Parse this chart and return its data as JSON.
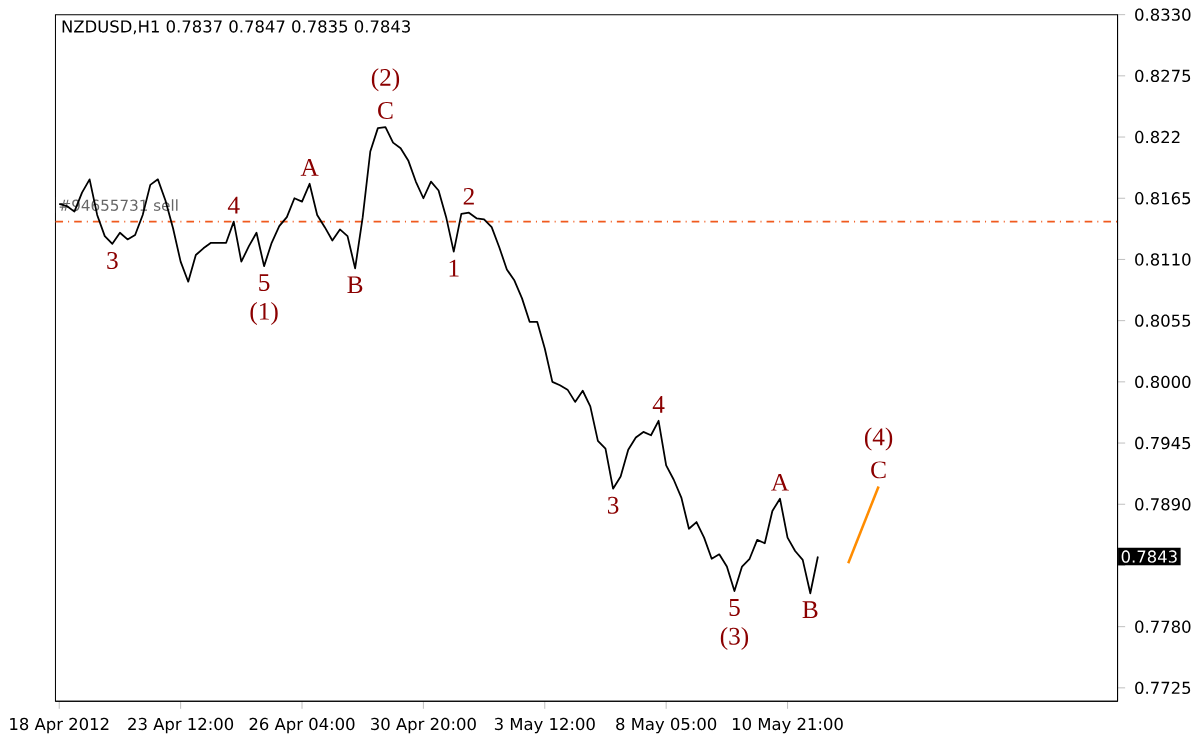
{
  "chart_data": {
    "type": "line",
    "title": "NZDUSD,H1  0.7837 0.7847 0.7835 0.7843",
    "categories": [
      "18 Apr 2012",
      null,
      null,
      null,
      null,
      null,
      null,
      null,
      null,
      null,
      null,
      null,
      null,
      null,
      null,
      null,
      "23 Apr 12:00",
      null,
      null,
      null,
      null,
      null,
      null,
      null,
      null,
      null,
      null,
      null,
      null,
      null,
      null,
      null,
      "26 Apr 04:00",
      null,
      null,
      null,
      null,
      null,
      null,
      null,
      null,
      null,
      null,
      null,
      null,
      null,
      null,
      null,
      "30 Apr 20:00",
      null,
      null,
      null,
      null,
      null,
      null,
      null,
      null,
      null,
      null,
      null,
      null,
      null,
      null,
      null,
      "3 May 12:00",
      null,
      null,
      null,
      null,
      null,
      null,
      null,
      null,
      null,
      null,
      null,
      null,
      null,
      null,
      null,
      "8 May 05:00",
      null,
      null,
      null,
      null,
      null,
      null,
      null,
      null,
      null,
      null,
      null,
      null,
      null,
      null,
      null,
      "10 May 21:00",
      null,
      null,
      null,
      null,
      null,
      null,
      null,
      null,
      null,
      null,
      null,
      null,
      null,
      null,
      null,
      null,
      null,
      null,
      null,
      null,
      null,
      null,
      null,
      null,
      null,
      null,
      null,
      null,
      null,
      null,
      null,
      null,
      null,
      null,
      null,
      null,
      null,
      null,
      null,
      null,
      null,
      null,
      null
    ],
    "ylim": [
      0.7713,
      0.833
    ],
    "yticks": [
      {
        "value": 0.833,
        "label": "0.8330"
      },
      0.8275,
      0.822,
      0.8165,
      {
        "value": 0.811,
        "label": "0.8110"
      },
      0.8055,
      {
        "value": 0.8,
        "label": "0.8000"
      },
      0.7945,
      {
        "value": 0.789,
        "label": "0.7890"
      },
      {
        "value": 0.7835,
        "label": null
      },
      {
        "value": 0.778,
        "label": "0.7780"
      },
      0.7725
    ],
    "grid": false,
    "line_style": "solid",
    "marker": "none",
    "series": [
      {
        "color": "#000000",
        "values": [
          0.816,
          0.8158,
          0.8153,
          0.817,
          0.8182,
          0.815,
          0.8131,
          0.8124,
          0.8134,
          0.8128,
          0.8132,
          0.815,
          0.8177,
          0.8182,
          0.8163,
          0.8138,
          0.8108,
          0.809,
          0.8114,
          0.812,
          0.8125,
          0.8125,
          0.8125,
          0.8144,
          0.8108,
          0.8122,
          0.8134,
          0.8104,
          0.8125,
          0.814,
          0.8148,
          0.8165,
          0.8162,
          0.8178,
          0.815,
          0.8139,
          0.8127,
          0.8137,
          0.8131,
          0.8102,
          0.8148,
          0.8207,
          0.8228,
          0.8229,
          0.8215,
          0.821,
          0.8199,
          0.818,
          0.8165,
          0.818,
          0.8172,
          0.8148,
          0.8117,
          0.8151,
          0.8152,
          0.8147,
          0.8146,
          0.8139,
          0.8121,
          0.8101,
          0.8091,
          0.8075,
          0.8054,
          0.8054,
          0.803,
          0.8,
          0.7997,
          0.7993,
          0.7982,
          0.7992,
          0.7978,
          0.7947,
          0.794,
          0.7904,
          0.7915,
          0.7939,
          0.795,
          0.7955,
          0.7952,
          0.7965,
          0.7925,
          0.7912,
          0.7896,
          0.7868,
          0.7874,
          0.786,
          0.7841,
          0.7845,
          0.7834,
          0.7812,
          0.7834,
          0.7841,
          0.7858,
          0.7855,
          0.7884,
          0.7895,
          0.786,
          0.7848,
          0.784,
          0.781,
          0.7843,
          null,
          null,
          null,
          null,
          null,
          null,
          null,
          null,
          null,
          null,
          null,
          null,
          null,
          null,
          null,
          null,
          null,
          null,
          null,
          null,
          null,
          null,
          null,
          null,
          null,
          null,
          null,
          null,
          null,
          null,
          null,
          null,
          null,
          null,
          null,
          null,
          null,
          null,
          null
        ]
      },
      {
        "color": "#ff8c00",
        "values": [
          null,
          null,
          null,
          null,
          null,
          null,
          null,
          null,
          null,
          null,
          null,
          null,
          null,
          null,
          null,
          null,
          null,
          null,
          null,
          null,
          null,
          null,
          null,
          null,
          null,
          null,
          null,
          null,
          null,
          null,
          null,
          null,
          null,
          null,
          null,
          null,
          null,
          null,
          null,
          null,
          null,
          null,
          null,
          null,
          null,
          null,
          null,
          null,
          null,
          null,
          null,
          null,
          null,
          null,
          null,
          null,
          null,
          null,
          null,
          null,
          null,
          null,
          null,
          null,
          null,
          null,
          null,
          null,
          null,
          null,
          null,
          null,
          null,
          null,
          null,
          null,
          null,
          null,
          null,
          null,
          null,
          null,
          null,
          null,
          null,
          null,
          null,
          null,
          null,
          null,
          null,
          null,
          null,
          null,
          null,
          null,
          null,
          null,
          null,
          null,
          null,
          null,
          null,
          null,
          0.7837,
          null,
          null,
          null,
          0.7906,
          null,
          null,
          null,
          null,
          null,
          null,
          null,
          null,
          null,
          null,
          null,
          null,
          null,
          null,
          null,
          null,
          null,
          null,
          null,
          null,
          null,
          null,
          null,
          null,
          null,
          null,
          null,
          null,
          null,
          null,
          null
        ]
      }
    ],
    "ref_lines": [
      {
        "axis": "y",
        "value": 0.8144,
        "label": "#94655731 sell",
        "color": "#f05a1e",
        "line_style": "dashdot"
      }
    ],
    "annotations": [
      {
        "text": "3",
        "y": 0.8124
      },
      {
        "text": "4",
        "y": 0.8144
      },
      {
        "text": "5",
        "y": 0.8104
      },
      {
        "text": "(1)",
        "y": 0.8104
      },
      {
        "text": "A",
        "y": 0.8178
      },
      {
        "text": "B",
        "y": 0.8102
      },
      {
        "text": "C",
        "y": 0.8229
      },
      {
        "text": "(2)",
        "y": 0.8229
      },
      {
        "text": "1",
        "y": 0.8117
      },
      {
        "text": "2",
        "y": 0.8152
      },
      {
        "text": "3",
        "y": 0.7904
      },
      {
        "text": "4",
        "y": 0.7965
      },
      {
        "text": "5",
        "y": 0.7812
      },
      {
        "text": "(3)",
        "y": 0.7812
      },
      {
        "text": "A",
        "y": 0.7895
      },
      {
        "text": "B",
        "y": 0.781
      },
      {
        "text": "C",
        "y": 0.7906
      },
      {
        "text": "(4)",
        "y": 0.7906
      },
      "0.7843"
    ]
  }
}
